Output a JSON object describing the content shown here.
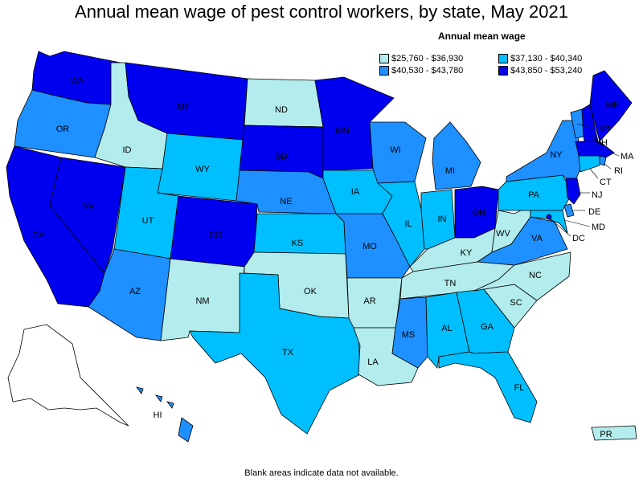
{
  "title": "Annual mean wage of pest control workers, by state, May 2021",
  "legend": {
    "title": "Annual mean wage",
    "items": [
      {
        "label": "$25,760 - $36,930",
        "color": "#b3ecec"
      },
      {
        "label": "$37,130 - $40,340",
        "color": "#00bfff"
      },
      {
        "label": "$40,530 - $43,780",
        "color": "#1e90ff"
      },
      {
        "label": "$43,850 - $53,240",
        "color": "#0000ee"
      }
    ]
  },
  "footnote": "Blank areas indicate data not available.",
  "states": {
    "WA": "#0000ee",
    "OR": "#1e90ff",
    "CA": "#0000ee",
    "NV": "#0000ee",
    "ID": "#b3ecec",
    "MT": "#0000ee",
    "WY": "#00bfff",
    "UT": "#00bfff",
    "AZ": "#1e90ff",
    "CO": "#0000ee",
    "NM": "#b3ecec",
    "ND": "#b3ecec",
    "SD": "#0000ee",
    "NE": "#1e90ff",
    "KS": "#00bfff",
    "OK": "#b3ecec",
    "TX": "#00bfff",
    "MN": "#0000ee",
    "IA": "#00bfff",
    "MO": "#1e90ff",
    "AR": "#b3ecec",
    "LA": "#b3ecec",
    "WI": "#1e90ff",
    "IL": "#00bfff",
    "MI": "#1e90ff",
    "IN": "#00bfff",
    "OH": "#0000ee",
    "KY": "#b3ecec",
    "TN": "#b3ecec",
    "MS": "#1e90ff",
    "AL": "#00bfff",
    "GA": "#00bfff",
    "FL": "#00bfff",
    "SC": "#b3ecec",
    "NC": "#b3ecec",
    "VA": "#1e90ff",
    "WV": "#b3ecec",
    "PA": "#00bfff",
    "NY": "#1e90ff",
    "VT": "#1e90ff",
    "NH": "#0000ee",
    "ME": "#0000ee",
    "MA": "#0000ee",
    "RI": "#1e90ff",
    "CT": "#00bfff",
    "NJ": "#0000ee",
    "DE": "#1e90ff",
    "MD": "#00bfff",
    "DC": "#0000ee",
    "HI": "#1e90ff",
    "AK": "#ffffff",
    "PR": "#b3ecec"
  }
}
